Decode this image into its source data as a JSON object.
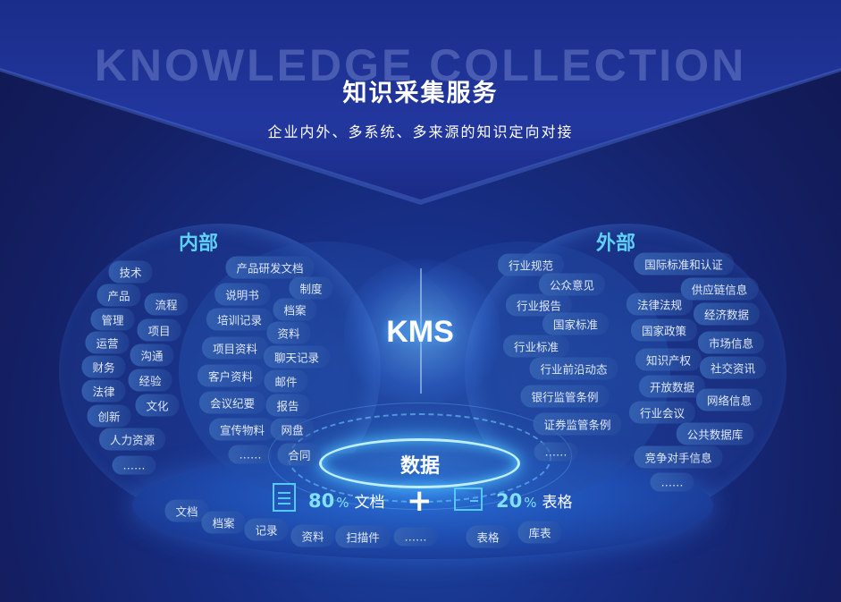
{
  "header": {
    "watermark": "KNOWLEDGE COLLECTION",
    "title": "知识采集服务",
    "subtitle": "企业内外、多系统、多来源的知识定向对接"
  },
  "center": {
    "core": "KMS",
    "data": "数据"
  },
  "internal": {
    "label": "内部",
    "outer": [
      "技术",
      "产品",
      "流程",
      "管理",
      "项目",
      "运营",
      "沟通",
      "财务",
      "经验",
      "法律",
      "文化",
      "创新",
      "人力资源",
      "……"
    ],
    "inner": [
      "产品研发文档",
      "制度",
      "说明书",
      "档案",
      "培训记录",
      "资料",
      "项目资料",
      "聊天记录",
      "客户资料",
      "邮件",
      "会议纪要",
      "报告",
      "宣传物料",
      "网盘",
      "……",
      "合同"
    ]
  },
  "external": {
    "label": "外部",
    "inner": [
      "行业规范",
      "公众意见",
      "行业报告",
      "国家标准",
      "行业标准",
      "行业前沿动态",
      "银行监管条例",
      "证券监管条例",
      "……"
    ],
    "outer": [
      "国际标准和认证",
      "供应链信息",
      "法律法规",
      "经济数据",
      "国家政策",
      "市场信息",
      "知识产权",
      "社交资讯",
      "开放数据",
      "网络信息",
      "行业会议",
      "公共数据库",
      "竞争对手信息",
      "……"
    ]
  },
  "stats": {
    "doc_value": "80",
    "doc_pct": "%",
    "doc_label": "文档",
    "plus": "+",
    "table_value": "20",
    "table_pct": "%",
    "table_label": "表格",
    "doc_icon": "document-icon",
    "table_icon": "spreadsheet-icon"
  },
  "bottom": [
    "文档",
    "档案",
    "记录",
    "资料",
    "扫描件",
    "……",
    "表格",
    "库表"
  ],
  "colors": {
    "background": "#141d5a",
    "accent": "#5fd0f5",
    "ring": "#bfefff"
  }
}
